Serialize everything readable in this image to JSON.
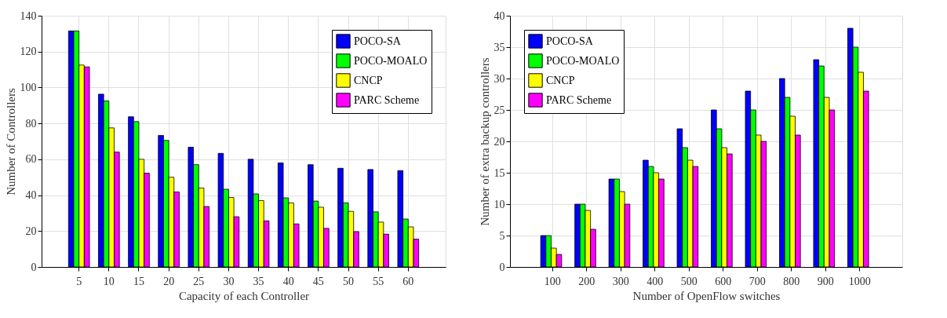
{
  "chart_data": [
    {
      "type": "bar",
      "xlabel": "Capacity of each Controller",
      "ylabel": "Number of Controllers",
      "categories": [
        "5",
        "10",
        "15",
        "20",
        "25",
        "30",
        "35",
        "40",
        "45",
        "50",
        "55",
        "60"
      ],
      "series": [
        {
          "name": "POCO-SA",
          "color": "#0000ff",
          "values": [
            131.5,
            96.3,
            83.7,
            73.3,
            66.7,
            63.3,
            60,
            58,
            57,
            55,
            54.3,
            53.7
          ]
        },
        {
          "name": "POCO-MOALO",
          "color": "#00ff00",
          "values": [
            131.5,
            92.5,
            81,
            70.5,
            57,
            43.3,
            40.7,
            38.5,
            36.7,
            35.7,
            30.7,
            26.7
          ]
        },
        {
          "name": "CNCP",
          "color": "#ffff00",
          "values": [
            112.5,
            77.5,
            60,
            50,
            44,
            38.7,
            37,
            35.7,
            33.3,
            31,
            25,
            22.3
          ]
        },
        {
          "name": "PARC Scheme",
          "color": "#ff00ff",
          "values": [
            111.5,
            64,
            52.3,
            41.8,
            33.7,
            28,
            25.7,
            24,
            21.5,
            19.7,
            18.3,
            15.5
          ]
        }
      ],
      "ylim": [
        0,
        140
      ],
      "yticks": [
        0,
        20,
        40,
        60,
        80,
        100,
        120,
        140
      ],
      "grid": true,
      "legend": "top right"
    },
    {
      "type": "bar",
      "xlabel": "Number of OpenFlow switches",
      "ylabel": "Number of extra backup controllers",
      "categories": [
        "100",
        "200",
        "300",
        "400",
        "500",
        "600",
        "700",
        "800",
        "900",
        "1000"
      ],
      "series": [
        {
          "name": "POCO-SA",
          "color": "#0000ff",
          "values": [
            5,
            10,
            14,
            17,
            22,
            25,
            28,
            30,
            33,
            38
          ]
        },
        {
          "name": "POCO-MOALO",
          "color": "#00ff00",
          "values": [
            5,
            10,
            14,
            16,
            19,
            22,
            25,
            27,
            32,
            35
          ]
        },
        {
          "name": "CNCP",
          "color": "#ffff00",
          "values": [
            3,
            9,
            12,
            15,
            17,
            19,
            21,
            24,
            27,
            31
          ]
        },
        {
          "name": "PARC Scheme",
          "color": "#ff00ff",
          "values": [
            2,
            6,
            10,
            14,
            16,
            18,
            20,
            21,
            25,
            28
          ]
        }
      ],
      "ylim": [
        0,
        40
      ],
      "yticks": [
        0,
        5,
        10,
        15,
        20,
        25,
        30,
        35,
        40
      ],
      "grid": true,
      "legend": "top left"
    }
  ]
}
